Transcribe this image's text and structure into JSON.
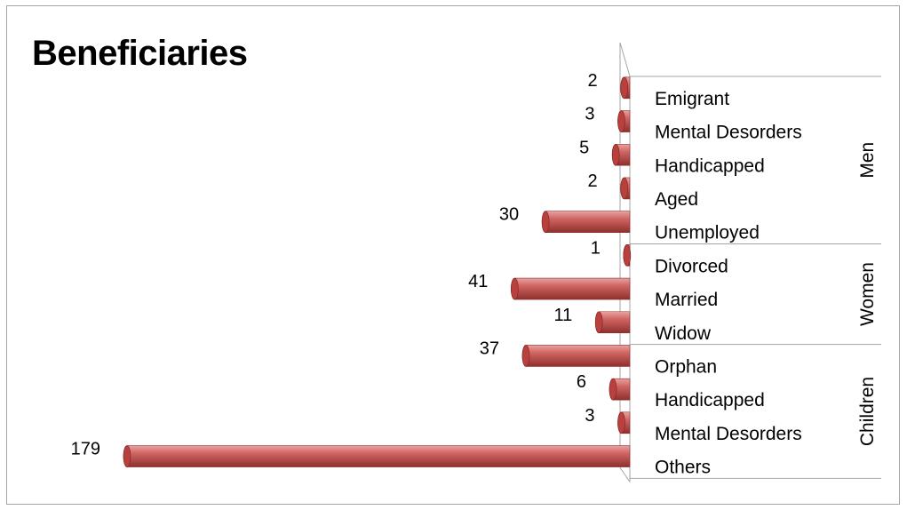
{
  "chart_data": {
    "type": "bar",
    "orientation": "horizontal",
    "title": "Beneficiaries",
    "categories": [
      {
        "label": "Emigrant",
        "group": "Men",
        "value": 2
      },
      {
        "label": "Mental Desorders",
        "group": "Men",
        "value": 3
      },
      {
        "label": "Handicapped",
        "group": "Men",
        "value": 5
      },
      {
        "label": "Aged",
        "group": "Men",
        "value": 2
      },
      {
        "label": "Unemployed",
        "group": "Men",
        "value": 30
      },
      {
        "label": "Divorced",
        "group": "Women",
        "value": 1
      },
      {
        "label": "Married",
        "group": "Women",
        "value": 41
      },
      {
        "label": "Widow",
        "group": "Women",
        "value": 11
      },
      {
        "label": "Orphan",
        "group": "Children",
        "value": 37
      },
      {
        "label": "Handicapped",
        "group": "Children",
        "value": 6
      },
      {
        "label": "Mental Desorders",
        "group": "Children",
        "value": 3
      },
      {
        "label": "Others",
        "group": "Children",
        "value": 179
      }
    ],
    "groups": [
      "Men",
      "Women",
      "Children"
    ],
    "x_direction": "reversed",
    "bar_color": "#c0504d",
    "style": "3d-cylinder",
    "legend": "none",
    "grid": false
  }
}
